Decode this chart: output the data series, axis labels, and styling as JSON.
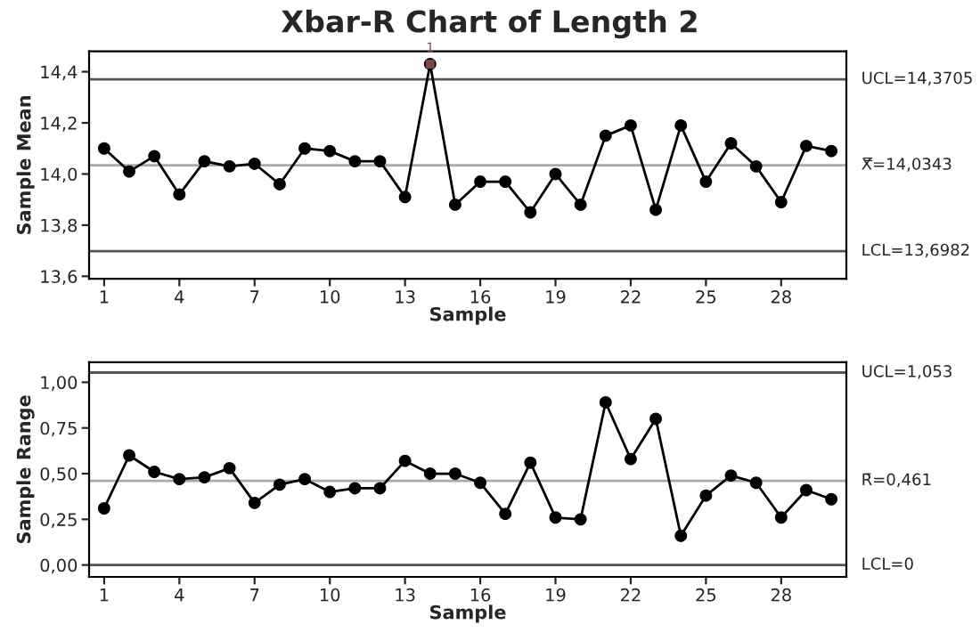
{
  "chart_data": [
    {
      "type": "line",
      "title": "Xbar-R Chart of Length 2",
      "xlabel": "Sample",
      "ylabel": "Sample Mean",
      "marker": "circle",
      "grid": false,
      "legend": false,
      "x": [
        1,
        2,
        3,
        4,
        5,
        6,
        7,
        8,
        9,
        10,
        11,
        12,
        13,
        14,
        15,
        16,
        17,
        18,
        19,
        20,
        21,
        22,
        23,
        24,
        25,
        26,
        27,
        28,
        29,
        30
      ],
      "series": [
        {
          "color": "#000000",
          "values": [
            14.1,
            14.01,
            14.07,
            13.92,
            14.05,
            14.03,
            14.04,
            13.96,
            14.1,
            14.09,
            14.05,
            14.05,
            13.91,
            14.43,
            13.88,
            13.97,
            13.97,
            13.85,
            14.0,
            13.88,
            14.15,
            14.19,
            13.86,
            14.19,
            13.97,
            14.12,
            14.03,
            13.89,
            14.11,
            14.09
          ]
        },
        {
          "type": "scatter",
          "marker": "square",
          "color": "#7a4848",
          "x": [
            14
          ],
          "values": [
            14.43
          ]
        }
      ],
      "xlim": [
        0.4,
        30.6
      ],
      "xticks": [
        1,
        4,
        7,
        10,
        13,
        16,
        19,
        22,
        25,
        28
      ],
      "ylim": [
        13.59,
        14.48
      ],
      "yticks": [
        {
          "value": 13.6,
          "label": "13,6"
        },
        {
          "value": 13.8,
          "label": "13,8"
        },
        {
          "value": 14.0,
          "label": "14,0"
        },
        {
          "value": 14.2,
          "label": "14,2"
        },
        {
          "value": 14.4,
          "label": "14,4"
        }
      ],
      "ref_lines": [
        {
          "axis": "y",
          "value": 14.3705,
          "label": "UCL=14,3705",
          "color": "#555555"
        },
        {
          "axis": "y",
          "value": 14.0343,
          "label": "X̿=14,0343",
          "color": "#aaaaaa"
        },
        {
          "axis": "y",
          "value": 13.6982,
          "label": "LCL=13,6982",
          "color": "#555555"
        }
      ],
      "annotations": [
        {
          "text": "1",
          "x": 14,
          "y": 14.43
        }
      ]
    },
    {
      "type": "line",
      "xlabel": "Sample",
      "ylabel": "Sample Range",
      "marker": "circle",
      "grid": false,
      "legend": false,
      "x": [
        1,
        2,
        3,
        4,
        5,
        6,
        7,
        8,
        9,
        10,
        11,
        12,
        13,
        14,
        15,
        16,
        17,
        18,
        19,
        20,
        21,
        22,
        23,
        24,
        25,
        26,
        27,
        28,
        29,
        30
      ],
      "series": [
        {
          "color": "#000000",
          "values": [
            0.31,
            0.6,
            0.51,
            0.47,
            0.48,
            0.53,
            0.34,
            0.44,
            0.47,
            0.4,
            0.42,
            0.42,
            0.57,
            0.5,
            0.5,
            0.45,
            0.28,
            0.56,
            0.26,
            0.25,
            0.89,
            0.58,
            0.8,
            0.16,
            0.38,
            0.49,
            0.45,
            0.26,
            0.41,
            0.36
          ]
        }
      ],
      "xlim": [
        0.4,
        30.6
      ],
      "xticks": [
        1,
        4,
        7,
        10,
        13,
        16,
        19,
        22,
        25,
        28
      ],
      "ylim": [
        -0.065,
        1.11
      ],
      "yticks": [
        {
          "value": 0.0,
          "label": "0,00"
        },
        {
          "value": 0.25,
          "label": "0,25"
        },
        {
          "value": 0.5,
          "label": "0,50"
        },
        {
          "value": 0.75,
          "label": "0,75"
        },
        {
          "value": 1.0,
          "label": "1,00"
        }
      ],
      "ref_lines": [
        {
          "axis": "y",
          "value": 1.053,
          "label": "UCL=1,053",
          "color": "#555555"
        },
        {
          "axis": "y",
          "value": 0.461,
          "label": "R̄=0,461",
          "color": "#aaaaaa"
        },
        {
          "axis": "y",
          "value": 0,
          "label": "LCL=0",
          "color": "#555555"
        }
      ]
    }
  ]
}
